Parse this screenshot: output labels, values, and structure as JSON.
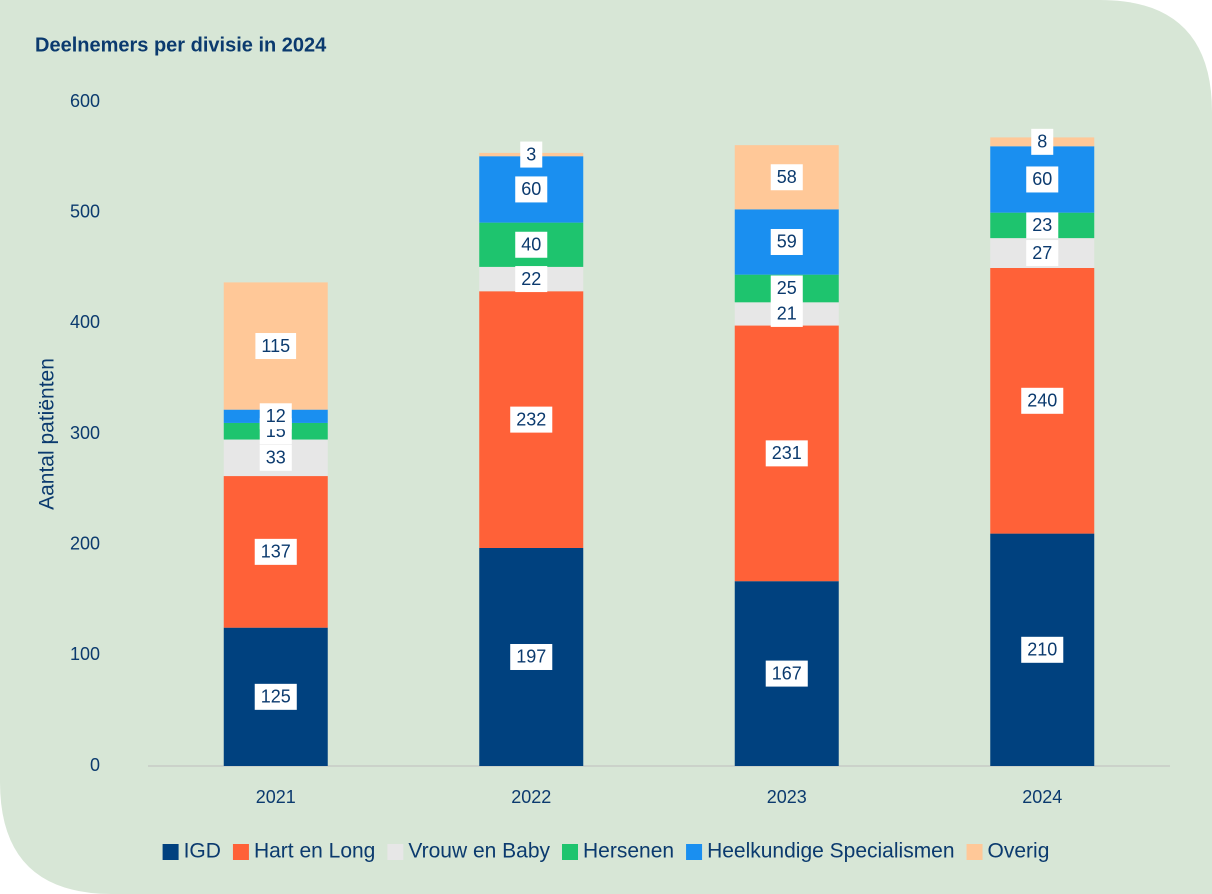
{
  "chart_data": {
    "type": "stacked_bar",
    "title": "Deelnemers per divisie in 2024",
    "y_label": "Aantal patiënten",
    "categories": [
      "2021",
      "2022",
      "2023",
      "2024"
    ],
    "series": [
      {
        "name": "IGD",
        "color": "#00417f",
        "values": [
          125,
          197,
          167,
          210
        ]
      },
      {
        "name": "Hart en Long",
        "color": "#ff6138",
        "values": [
          137,
          232,
          231,
          240
        ]
      },
      {
        "name": "Vrouw en Baby",
        "color": "#e7e7e7",
        "values": [
          33,
          22,
          21,
          27
        ]
      },
      {
        "name": "Hersenen",
        "color": "#1ec46e",
        "values": [
          15,
          40,
          25,
          23
        ]
      },
      {
        "name": "Heelkundige Specialismen",
        "color": "#1a8ff0",
        "values": [
          12,
          60,
          59,
          60
        ]
      },
      {
        "name": "Overig",
        "color": "#ffc898",
        "values": [
          115,
          3,
          58,
          8
        ]
      }
    ],
    "ylim": [
      0,
      600
    ],
    "yticks": [
      0,
      100,
      200,
      300,
      400,
      500,
      600
    ],
    "legend": "bottom",
    "grid": false
  }
}
